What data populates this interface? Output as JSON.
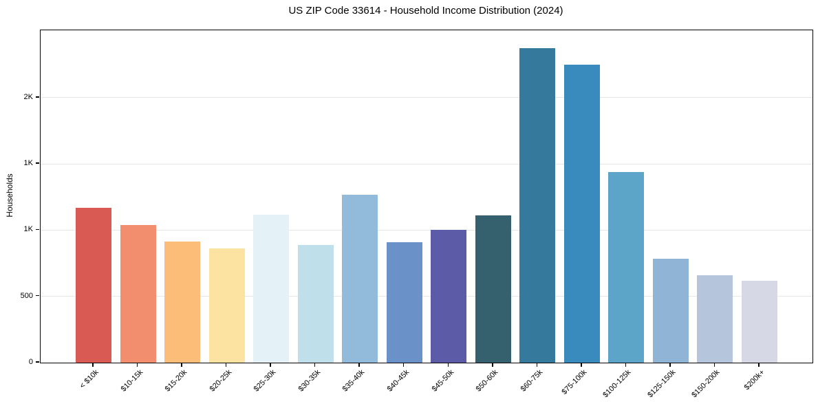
{
  "figure": {
    "background": "#ffffff",
    "text_color": "#000000"
  },
  "chart_data": {
    "type": "bar",
    "title": "US ZIP Code 33614 - Household Income Distribution (2024)",
    "xlabel": "",
    "ylabel": "Households",
    "categories": [
      "< $10k",
      "$10-15k",
      "$15-20k",
      "$20-25k",
      "$25-30k",
      "$30-35k",
      "$35-40k",
      "$40-45k",
      "$45-50k",
      "$50-60k",
      "$60-75k",
      "$75-100k",
      "$100-125k",
      "$125-150k",
      "$150-200k",
      "$200k+"
    ],
    "values": [
      1170,
      1040,
      915,
      860,
      1115,
      890,
      1265,
      910,
      1000,
      1110,
      2375,
      2250,
      1440,
      785,
      660,
      620
    ],
    "bar_colors": [
      "#d95a52",
      "#f28d6d",
      "#fbbd77",
      "#fde3a2",
      "#e4f1f6",
      "#bfe0eb",
      "#92bbdb",
      "#6b92c8",
      "#5b5ba7",
      "#35616e",
      "#35799c",
      "#398bbd",
      "#5ca4c8",
      "#8fb4d6",
      "#b4c5dc",
      "#d7d8e6"
    ],
    "ylim": [
      0,
      2508
    ],
    "yticks": [
      {
        "value": 0,
        "label": "0"
      },
      {
        "value": 500,
        "label": "500"
      },
      {
        "value": 1000,
        "label": "1K"
      },
      {
        "value": 1500,
        "label": "1K"
      },
      {
        "value": 2000,
        "label": "2K"
      }
    ],
    "grid": "horizontal",
    "gridline_color": "#e6e6e6",
    "axis_color": "#000000",
    "bar_width_ratio": 0.8,
    "legend": null
  }
}
